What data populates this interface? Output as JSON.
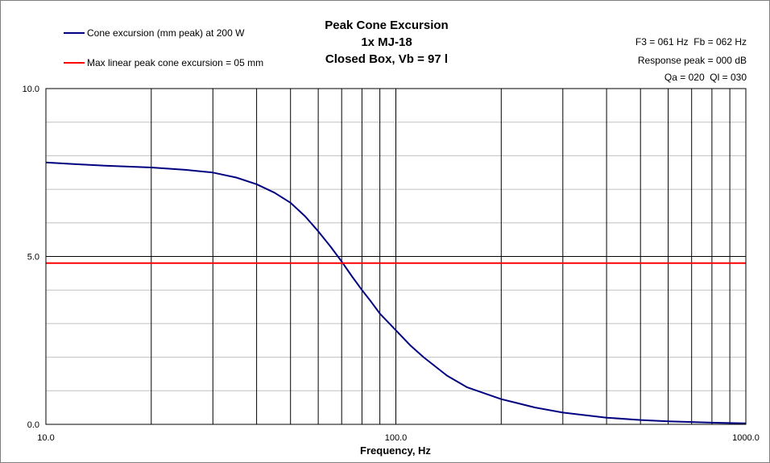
{
  "chart_data": {
    "type": "line",
    "title_lines": [
      "Peak Cone Excursion",
      "1x MJ-18",
      "Closed Box, Vb = 97 l"
    ],
    "xlabel": "Frequency, Hz",
    "ylabel": "",
    "x_scale": "log",
    "xlim": [
      10,
      1000
    ],
    "ylim": [
      0,
      10
    ],
    "x_ticks": [
      {
        "v": 10,
        "label": "10.0"
      },
      {
        "v": 100,
        "label": "100.0"
      },
      {
        "v": 1000,
        "label": "1000.0"
      }
    ],
    "y_ticks": [
      {
        "v": 0,
        "label": "0.0"
      },
      {
        "v": 5,
        "label": "5.0"
      },
      {
        "v": 10,
        "label": "10.0"
      }
    ],
    "grid": true,
    "legend_position": "top-left",
    "info_lines": [
      "F3 = 061 Hz  Fb = 062 Hz",
      "Response peak = 000 dB",
      "Qa = 020  Ql = 030"
    ],
    "series": [
      {
        "name": "Cone excursion (mm peak) at 200 W",
        "color": "#000080",
        "x": [
          10,
          12,
          15,
          20,
          25,
          30,
          35,
          40,
          45,
          50,
          55,
          60,
          65,
          70,
          75,
          80,
          85,
          90,
          100,
          110,
          120,
          140,
          160,
          200,
          250,
          300,
          400,
          500,
          600,
          800,
          1000
        ],
        "y": [
          7.8,
          7.75,
          7.7,
          7.65,
          7.58,
          7.5,
          7.35,
          7.15,
          6.9,
          6.6,
          6.2,
          5.75,
          5.3,
          4.85,
          4.4,
          4.0,
          3.65,
          3.3,
          2.8,
          2.35,
          2.0,
          1.45,
          1.1,
          0.75,
          0.5,
          0.35,
          0.2,
          0.13,
          0.09,
          0.05,
          0.03
        ]
      },
      {
        "name": "Max linear peak cone excursion = 05 mm",
        "color": "#ff0000",
        "x": [
          10,
          1000
        ],
        "y": [
          4.8,
          4.8
        ]
      }
    ]
  }
}
